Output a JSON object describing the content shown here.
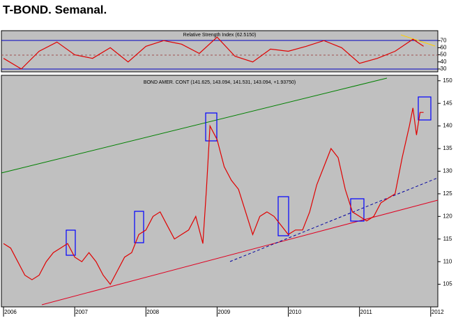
{
  "title": "T-BOND. Semanal.",
  "chart_data": [
    {
      "type": "line",
      "title": "Relative Strength Index (62.5150)",
      "x": [
        2006.0,
        2006.25,
        2006.5,
        2006.75,
        2007.0,
        2007.25,
        2007.5,
        2007.75,
        2008.0,
        2008.25,
        2008.5,
        2008.75,
        2009.0,
        2009.25,
        2009.5,
        2009.75,
        2010.0,
        2010.25,
        2010.5,
        2010.75,
        2011.0,
        2011.25,
        2011.5,
        2011.75,
        2011.9
      ],
      "series": [
        {
          "name": "RSI",
          "color": "#e00000",
          "values": [
            45,
            30,
            55,
            68,
            50,
            45,
            60,
            40,
            62,
            70,
            65,
            52,
            75,
            48,
            40,
            58,
            55,
            62,
            70,
            60,
            38,
            45,
            55,
            72,
            62
          ]
        }
      ],
      "xlim": [
        2005.97,
        2012.1
      ],
      "ylim": [
        26,
        84
      ],
      "yticks": [
        30,
        40,
        50,
        60,
        70
      ]
    },
    {
      "type": "line",
      "title": "BOND AMER. CONT (141.625, 143.094, 141.531, 143.094, +1.93750)",
      "x": [
        2006.0,
        2006.1,
        2006.2,
        2006.3,
        2006.4,
        2006.5,
        2006.6,
        2006.7,
        2006.8,
        2006.9,
        2007.0,
        2007.1,
        2007.2,
        2007.3,
        2007.4,
        2007.5,
        2007.6,
        2007.7,
        2007.8,
        2007.9,
        2008.0,
        2008.1,
        2008.2,
        2008.3,
        2008.4,
        2008.5,
        2008.6,
        2008.7,
        2008.8,
        2008.85,
        2008.9,
        2009.0,
        2009.1,
        2009.2,
        2009.3,
        2009.4,
        2009.5,
        2009.6,
        2009.7,
        2009.8,
        2009.9,
        2010.0,
        2010.1,
        2010.2,
        2010.3,
        2010.4,
        2010.5,
        2010.6,
        2010.7,
        2010.8,
        2010.9,
        2011.0,
        2011.1,
        2011.2,
        2011.3,
        2011.4,
        2011.5,
        2011.6,
        2011.7,
        2011.75,
        2011.8,
        2011.85,
        2011.9
      ],
      "series": [
        {
          "name": "BOND AMER. CONT",
          "color": "#e00000",
          "values": [
            114,
            113,
            110,
            107,
            106,
            107,
            110,
            112,
            113,
            114,
            111,
            110,
            112,
            110,
            107,
            105,
            108,
            111,
            112,
            116,
            117,
            120,
            121,
            118,
            115,
            116,
            117,
            120,
            114,
            126,
            140,
            137,
            131,
            128,
            126,
            121,
            116,
            120,
            121,
            120,
            118,
            116,
            117,
            117,
            121,
            127,
            131,
            135,
            133,
            126,
            121,
            120,
            119,
            120,
            123,
            124,
            125,
            133,
            140,
            144,
            138,
            143,
            143
          ]
        }
      ],
      "xlim": [
        2005.97,
        2012.1
      ],
      "ylim": [
        100,
        151.2
      ],
      "yticks": [
        105,
        110,
        115,
        120,
        125,
        130,
        135,
        140,
        145,
        150
      ],
      "xticks": [
        2006,
        2007,
        2008,
        2009,
        2010,
        2011,
        2012
      ]
    }
  ]
}
